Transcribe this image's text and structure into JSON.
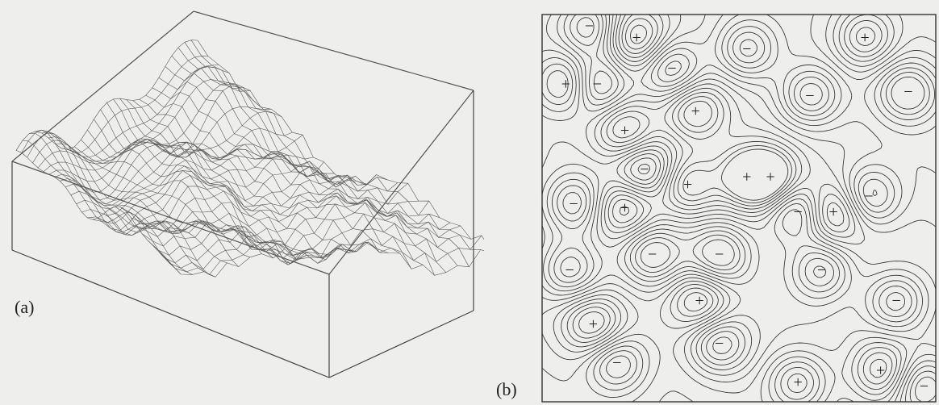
{
  "figure": {
    "panel_a": {
      "label": "(a)",
      "grid_rows": 28,
      "grid_cols": 28
    },
    "panel_b": {
      "label": "(b)",
      "markers": [
        {
          "sign": "+"
        },
        {
          "sign": "+"
        },
        {
          "sign": "+"
        },
        {
          "sign": "+"
        },
        {
          "sign": "+"
        },
        {
          "sign": "+"
        },
        {
          "sign": "+"
        },
        {
          "sign": "+"
        },
        {
          "sign": "+"
        },
        {
          "sign": "+"
        },
        {
          "sign": "+"
        },
        {
          "sign": "+"
        },
        {
          "sign": "+"
        },
        {
          "sign": "+"
        },
        {
          "sign": "−"
        },
        {
          "sign": "−"
        },
        {
          "sign": "−"
        },
        {
          "sign": "−"
        },
        {
          "sign": "−"
        },
        {
          "sign": "−"
        },
        {
          "sign": "−"
        },
        {
          "sign": "−"
        },
        {
          "sign": "−"
        },
        {
          "sign": "−"
        },
        {
          "sign": "−"
        },
        {
          "sign": "−"
        },
        {
          "sign": "−"
        },
        {
          "sign": "−"
        },
        {
          "sign": "−"
        },
        {
          "sign": "−"
        },
        {
          "sign": "−"
        },
        {
          "sign": "−"
        }
      ]
    }
  }
}
